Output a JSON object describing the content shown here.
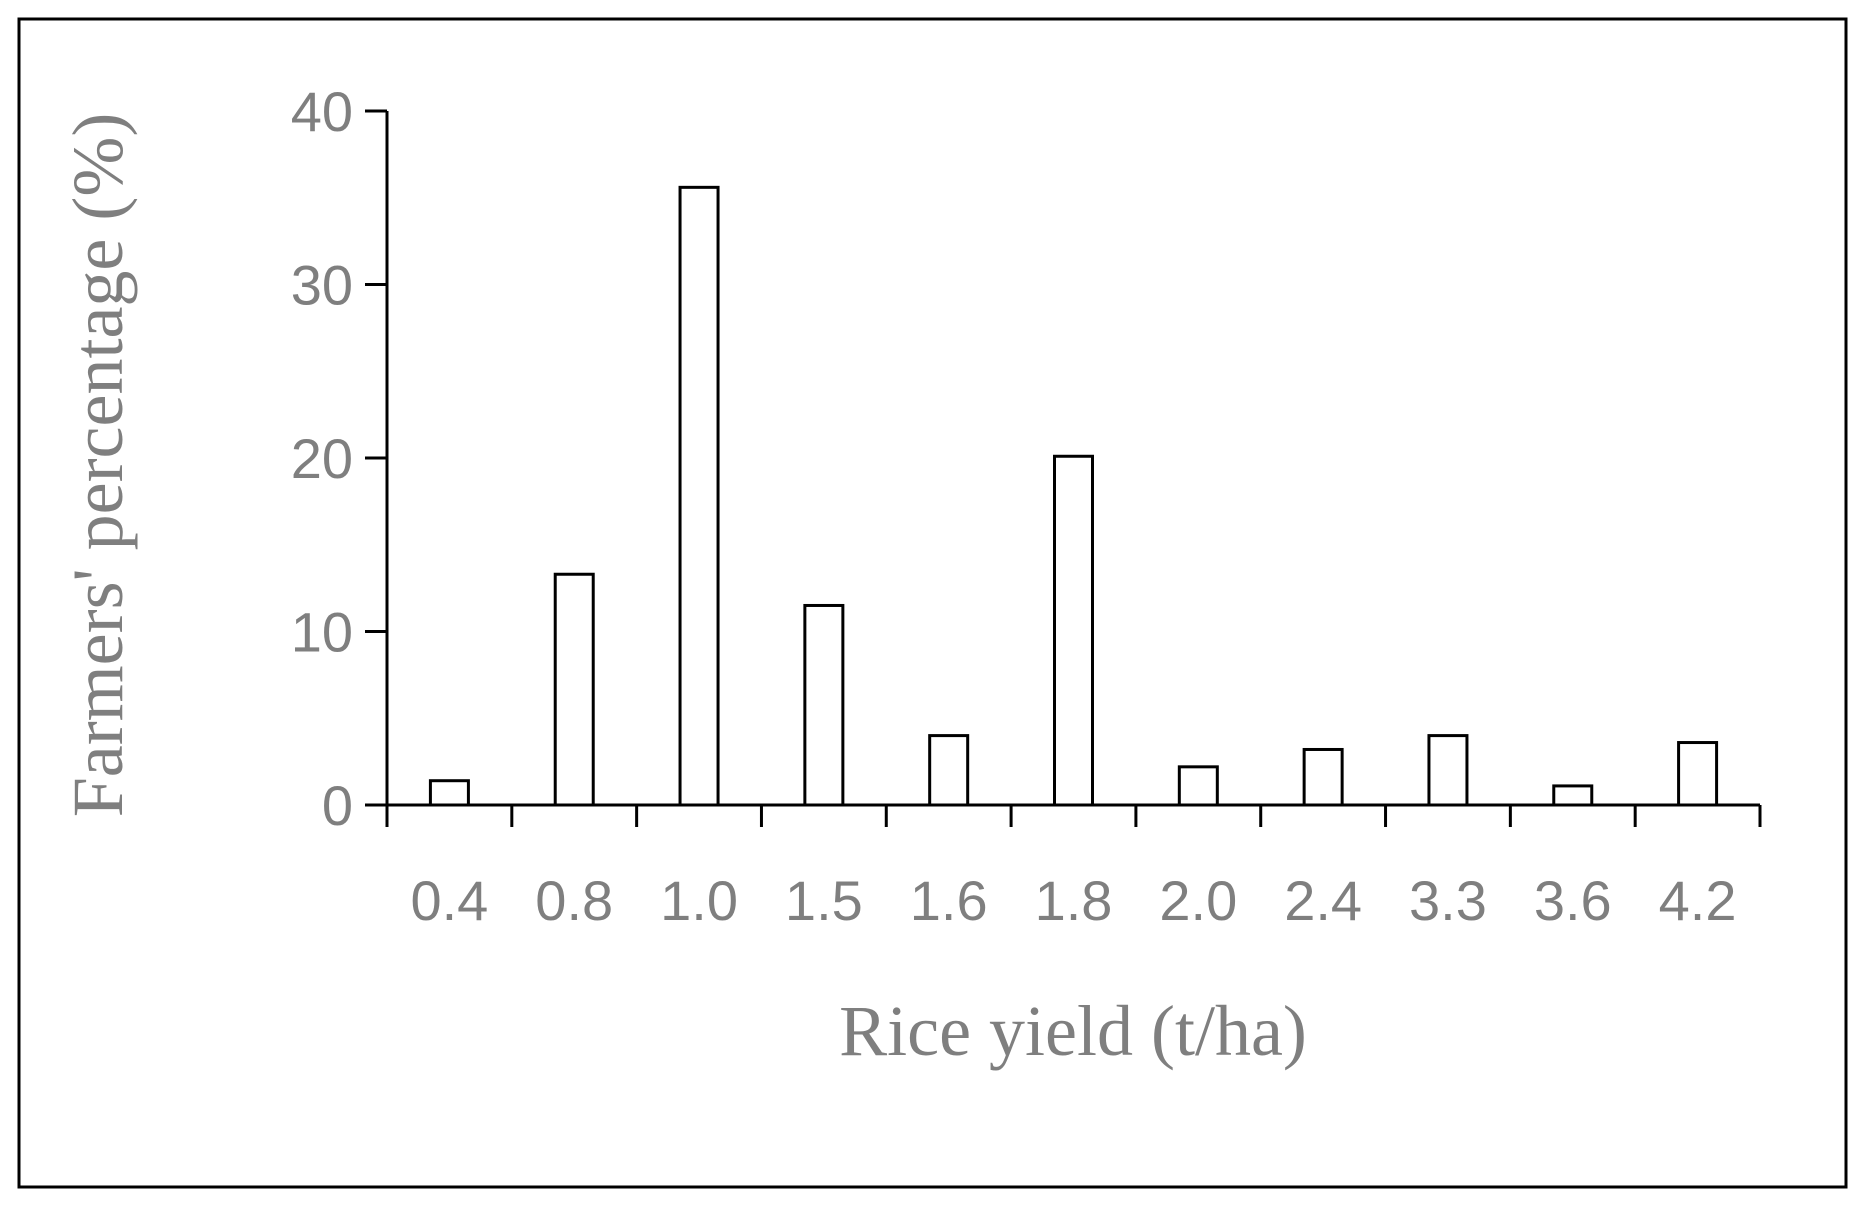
{
  "chart_data": {
    "type": "bar",
    "title": "",
    "xlabel": "Rice yield (t/ha)",
    "ylabel": "Farmers' percentage (%)",
    "categories": [
      "0.4",
      "0.8",
      "1.0",
      "1.5",
      "1.6",
      "1.8",
      "2.0",
      "2.4",
      "3.3",
      "3.6",
      "4.2"
    ],
    "values": [
      1.4,
      13.3,
      35.6,
      11.5,
      4.0,
      20.1,
      2.2,
      3.2,
      4.0,
      1.1,
      3.6
    ],
    "ylim": [
      0,
      40
    ],
    "yticks": [
      "0",
      "10",
      "20",
      "30",
      "40"
    ],
    "grid": false,
    "legend": "none",
    "colors": {
      "bar_fill": "#ffffff",
      "bar_stroke": "#000000",
      "text": "#7f7f7f",
      "axis": "#000000"
    }
  }
}
